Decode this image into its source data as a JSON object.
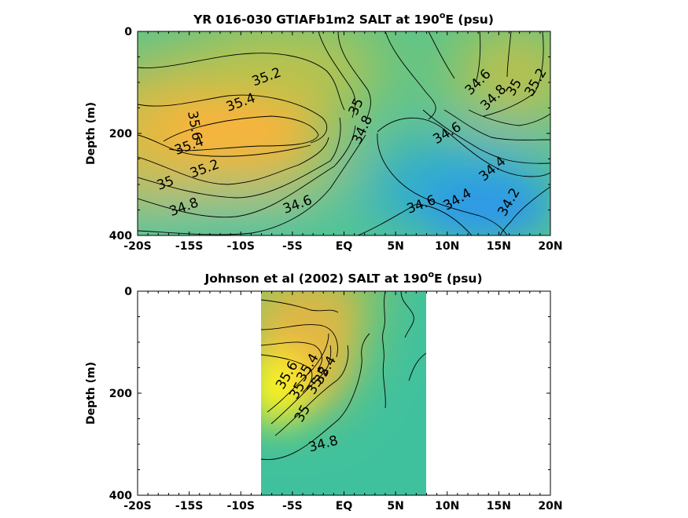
{
  "chart_data": [
    {
      "type": "heatmap",
      "title": "YR 016-030 GTIAFb1m2 SALT at 190",
      "title_sup": "o",
      "title_tail": "E (psu)",
      "xlabel": "",
      "ylabel": "Depth (m)",
      "x_tick_labels": [
        "-20S",
        "-15S",
        "-10S",
        "-5S",
        "EQ",
        "5N",
        "10N",
        "15N",
        "20N"
      ],
      "x_tick_values": [
        -20,
        -15,
        -10,
        -5,
        0,
        5,
        10,
        15,
        20
      ],
      "y_tick_labels": [
        "0",
        "200",
        "400"
      ],
      "y_tick_values": [
        0,
        200,
        400
      ],
      "xlim": [
        -20,
        20
      ],
      "ylim": [
        0,
        400
      ],
      "y_reversed": true,
      "contour_labels": [
        {
          "text": "35.2",
          "x": -7.5,
          "y": 90
        },
        {
          "text": "35.4",
          "x": -10,
          "y": 140
        },
        {
          "text": "35.6",
          "x": -14.5,
          "y": 185
        },
        {
          "text": "35.4",
          "x": -15,
          "y": 225
        },
        {
          "text": "35.2",
          "x": -13.5,
          "y": 270
        },
        {
          "text": "35",
          "x": -17.3,
          "y": 298
        },
        {
          "text": "34.8",
          "x": -15.5,
          "y": 345
        },
        {
          "text": "34.6",
          "x": -4.5,
          "y": 340
        },
        {
          "text": "35",
          "x": 1.2,
          "y": 148
        },
        {
          "text": "34.8",
          "x": 1.8,
          "y": 193
        },
        {
          "text": "34.6",
          "x": 13.0,
          "y": 100
        },
        {
          "text": "34.8",
          "x": 14.5,
          "y": 130
        },
        {
          "text": "35",
          "x": 16.5,
          "y": 110
        },
        {
          "text": "35.2",
          "x": 18.6,
          "y": 100
        },
        {
          "text": "34.6",
          "x": 10.0,
          "y": 200
        },
        {
          "text": "34.4",
          "x": 14.4,
          "y": 270
        },
        {
          "text": "34.4",
          "x": 11.0,
          "y": 330
        },
        {
          "text": "34.2",
          "x": 16.0,
          "y": 335
        },
        {
          "text": "34.6",
          "x": 7.5,
          "y": 340
        }
      ],
      "colors": {
        "max": "#ffe019",
        "high": "#f6b83e",
        "mid": "#c9c448",
        "green": "#88c870",
        "teal": "#40c2a0",
        "low": "#2aabd6",
        "min": "#2f98e8"
      }
    },
    {
      "type": "heatmap",
      "title": "Johnson et al (2002) SALT at 190",
      "title_sup": "o",
      "title_tail": "E (psu)",
      "xlabel": "",
      "ylabel": "Depth (m)",
      "x_tick_labels": [
        "-20S",
        "-15S",
        "-10S",
        "-5S",
        "EQ",
        "5N",
        "10N",
        "15N",
        "20N"
      ],
      "x_tick_values": [
        -20,
        -15,
        -10,
        -5,
        0,
        5,
        10,
        15,
        20
      ],
      "y_tick_labels": [
        "0",
        "200",
        "400"
      ],
      "y_tick_values": [
        0,
        200,
        400
      ],
      "xlim": [
        -20,
        20
      ],
      "ylim": [
        0,
        400
      ],
      "y_reversed": true,
      "data_x_extent": [
        -8,
        8
      ],
      "contour_labels": [
        {
          "text": "35.6",
          "x": -5.5,
          "y": 165
        },
        {
          "text": "35.4",
          "x": -3.5,
          "y": 150
        },
        {
          "text": "35.4",
          "x": -1.8,
          "y": 155
        },
        {
          "text": "35.2",
          "x": -2.5,
          "y": 175
        },
        {
          "text": "35",
          "x": -4.5,
          "y": 195
        },
        {
          "text": "35",
          "x": -4.0,
          "y": 240
        },
        {
          "text": "34.8",
          "x": -2.0,
          "y": 300
        }
      ],
      "colors": {
        "max": "#ffff1a",
        "high": "#f7b53f",
        "mid": "#b2c34d",
        "teal": "#3cbf9f"
      }
    }
  ]
}
